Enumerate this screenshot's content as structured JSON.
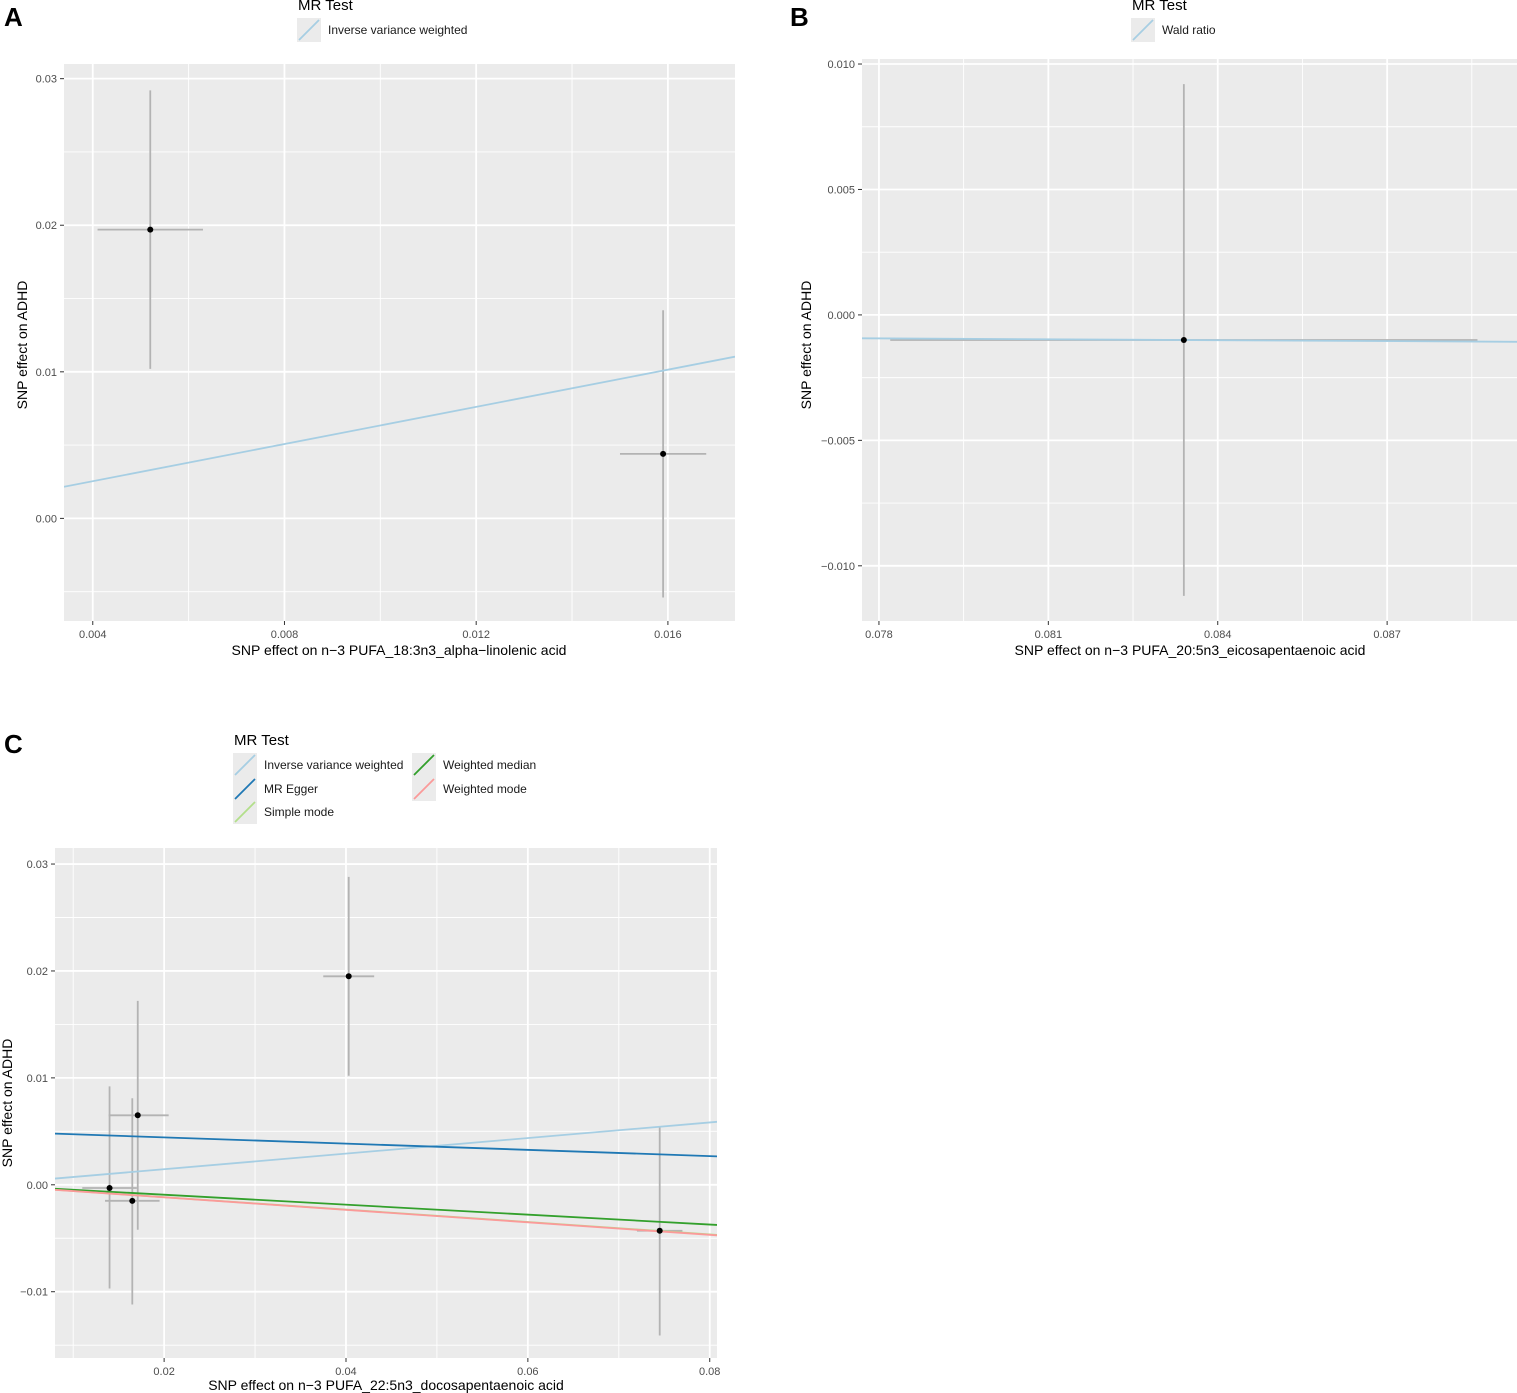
{
  "chart_data": [
    {
      "panel": "A",
      "type": "scatter",
      "legend_title": "MR Test",
      "xlabel": "SNP effect on n−3 PUFA_18:3n3_alpha−linolenic acid",
      "ylabel": "SNP effect on ADHD",
      "xlim": [
        0.0034,
        0.0174
      ],
      "ylim": [
        -0.007,
        0.031
      ],
      "xticks": [
        0.004,
        0.008,
        0.012,
        0.016
      ],
      "xtick_labels": [
        "0.004",
        "0.008",
        "0.012",
        "0.016"
      ],
      "yticks": [
        0.0,
        0.01,
        0.02,
        0.03
      ],
      "ytick_labels": [
        "0.00",
        "0.01",
        "0.02",
        "0.03"
      ],
      "points": [
        {
          "x": 0.0052,
          "y": 0.0197,
          "xlo": 0.0041,
          "xhi": 0.0063,
          "ylo": 0.0102,
          "yhi": 0.0292
        },
        {
          "x": 0.0159,
          "y": 0.0044,
          "xlo": 0.015,
          "xhi": 0.0168,
          "ylo": -0.0054,
          "yhi": 0.0142
        }
      ],
      "series": [
        {
          "name": "Inverse variance weighted",
          "color": "#a6cee3",
          "intercept": 0,
          "slope": 0.634
        }
      ]
    },
    {
      "panel": "B",
      "type": "scatter",
      "legend_title": "MR Test",
      "xlabel": "SNP effect on n−3 PUFA_20:5n3_eicosapentaenoic acid",
      "ylabel": "SNP effect on ADHD",
      "xlim": [
        0.0777,
        0.0893
      ],
      "ylim": [
        -0.0122,
        0.0102
      ],
      "xticks": [
        0.078,
        0.081,
        0.084,
        0.087
      ],
      "xtick_labels": [
        "0.078",
        "0.081",
        "0.084",
        "0.087"
      ],
      "yticks": [
        -0.01,
        -0.005,
        0.0,
        0.005,
        0.01
      ],
      "ytick_labels": [
        "−0.010",
        "−0.005",
        "0.000",
        "0.005",
        "0.010"
      ],
      "points": [
        {
          "x": 0.0834,
          "y": -0.001,
          "xlo": 0.0782,
          "xhi": 0.0886,
          "ylo": -0.0112,
          "yhi": 0.0092
        }
      ],
      "series": [
        {
          "name": "Wald ratio",
          "color": "#a6cee3",
          "intercept": 0,
          "slope": -0.012
        }
      ]
    },
    {
      "panel": "C",
      "type": "scatter",
      "legend_title": "MR Test",
      "xlabel": "SNP effect on n−3 PUFA_22:5n3_docosapentaenoic acid",
      "ylabel": "SNP effect on ADHD",
      "xlim": [
        0.008,
        0.0808
      ],
      "ylim": [
        -0.0162,
        0.0315
      ],
      "xticks": [
        0.02,
        0.04,
        0.06,
        0.08
      ],
      "xtick_labels": [
        "0.02",
        "0.04",
        "0.06",
        "0.08"
      ],
      "yticks": [
        -0.01,
        0.0,
        0.01,
        0.02,
        0.03
      ],
      "ytick_labels": [
        "−0.01",
        "0.00",
        "0.01",
        "0.02",
        "0.03"
      ],
      "points": [
        {
          "x": 0.0403,
          "y": 0.0195,
          "xlo": 0.0375,
          "xhi": 0.0431,
          "ylo": 0.0102,
          "yhi": 0.0288
        },
        {
          "x": 0.0171,
          "y": 0.0065,
          "xlo": 0.0139,
          "xhi": 0.0205,
          "ylo": -0.0042,
          "yhi": 0.0172
        },
        {
          "x": 0.014,
          "y": -0.0003,
          "xlo": 0.011,
          "xhi": 0.017,
          "ylo": -0.0097,
          "yhi": 0.0092
        },
        {
          "x": 0.0165,
          "y": -0.0015,
          "xlo": 0.0135,
          "xhi": 0.0195,
          "ylo": -0.0112,
          "yhi": 0.0081
        },
        {
          "x": 0.0745,
          "y": -0.0043,
          "xlo": 0.072,
          "xhi": 0.077,
          "ylo": -0.0141,
          "yhi": 0.0054
        }
      ],
      "series": [
        {
          "name": "Inverse variance weighted",
          "color": "#a6cee3",
          "intercept": 0,
          "slope": 0.0729
        },
        {
          "name": "MR Egger",
          "color": "#1f78b4",
          "intercept": 0.00502,
          "slope": -0.0292
        },
        {
          "name": "Simple mode",
          "color": "#b2df8a",
          "intercept": 0,
          "slope": -0.058
        },
        {
          "name": "Weighted median",
          "color": "#33a02c",
          "intercept": 0,
          "slope": -0.0465
        },
        {
          "name": "Weighted mode",
          "color": "#fb9a99",
          "intercept": 0,
          "slope": -0.0585
        }
      ]
    }
  ]
}
